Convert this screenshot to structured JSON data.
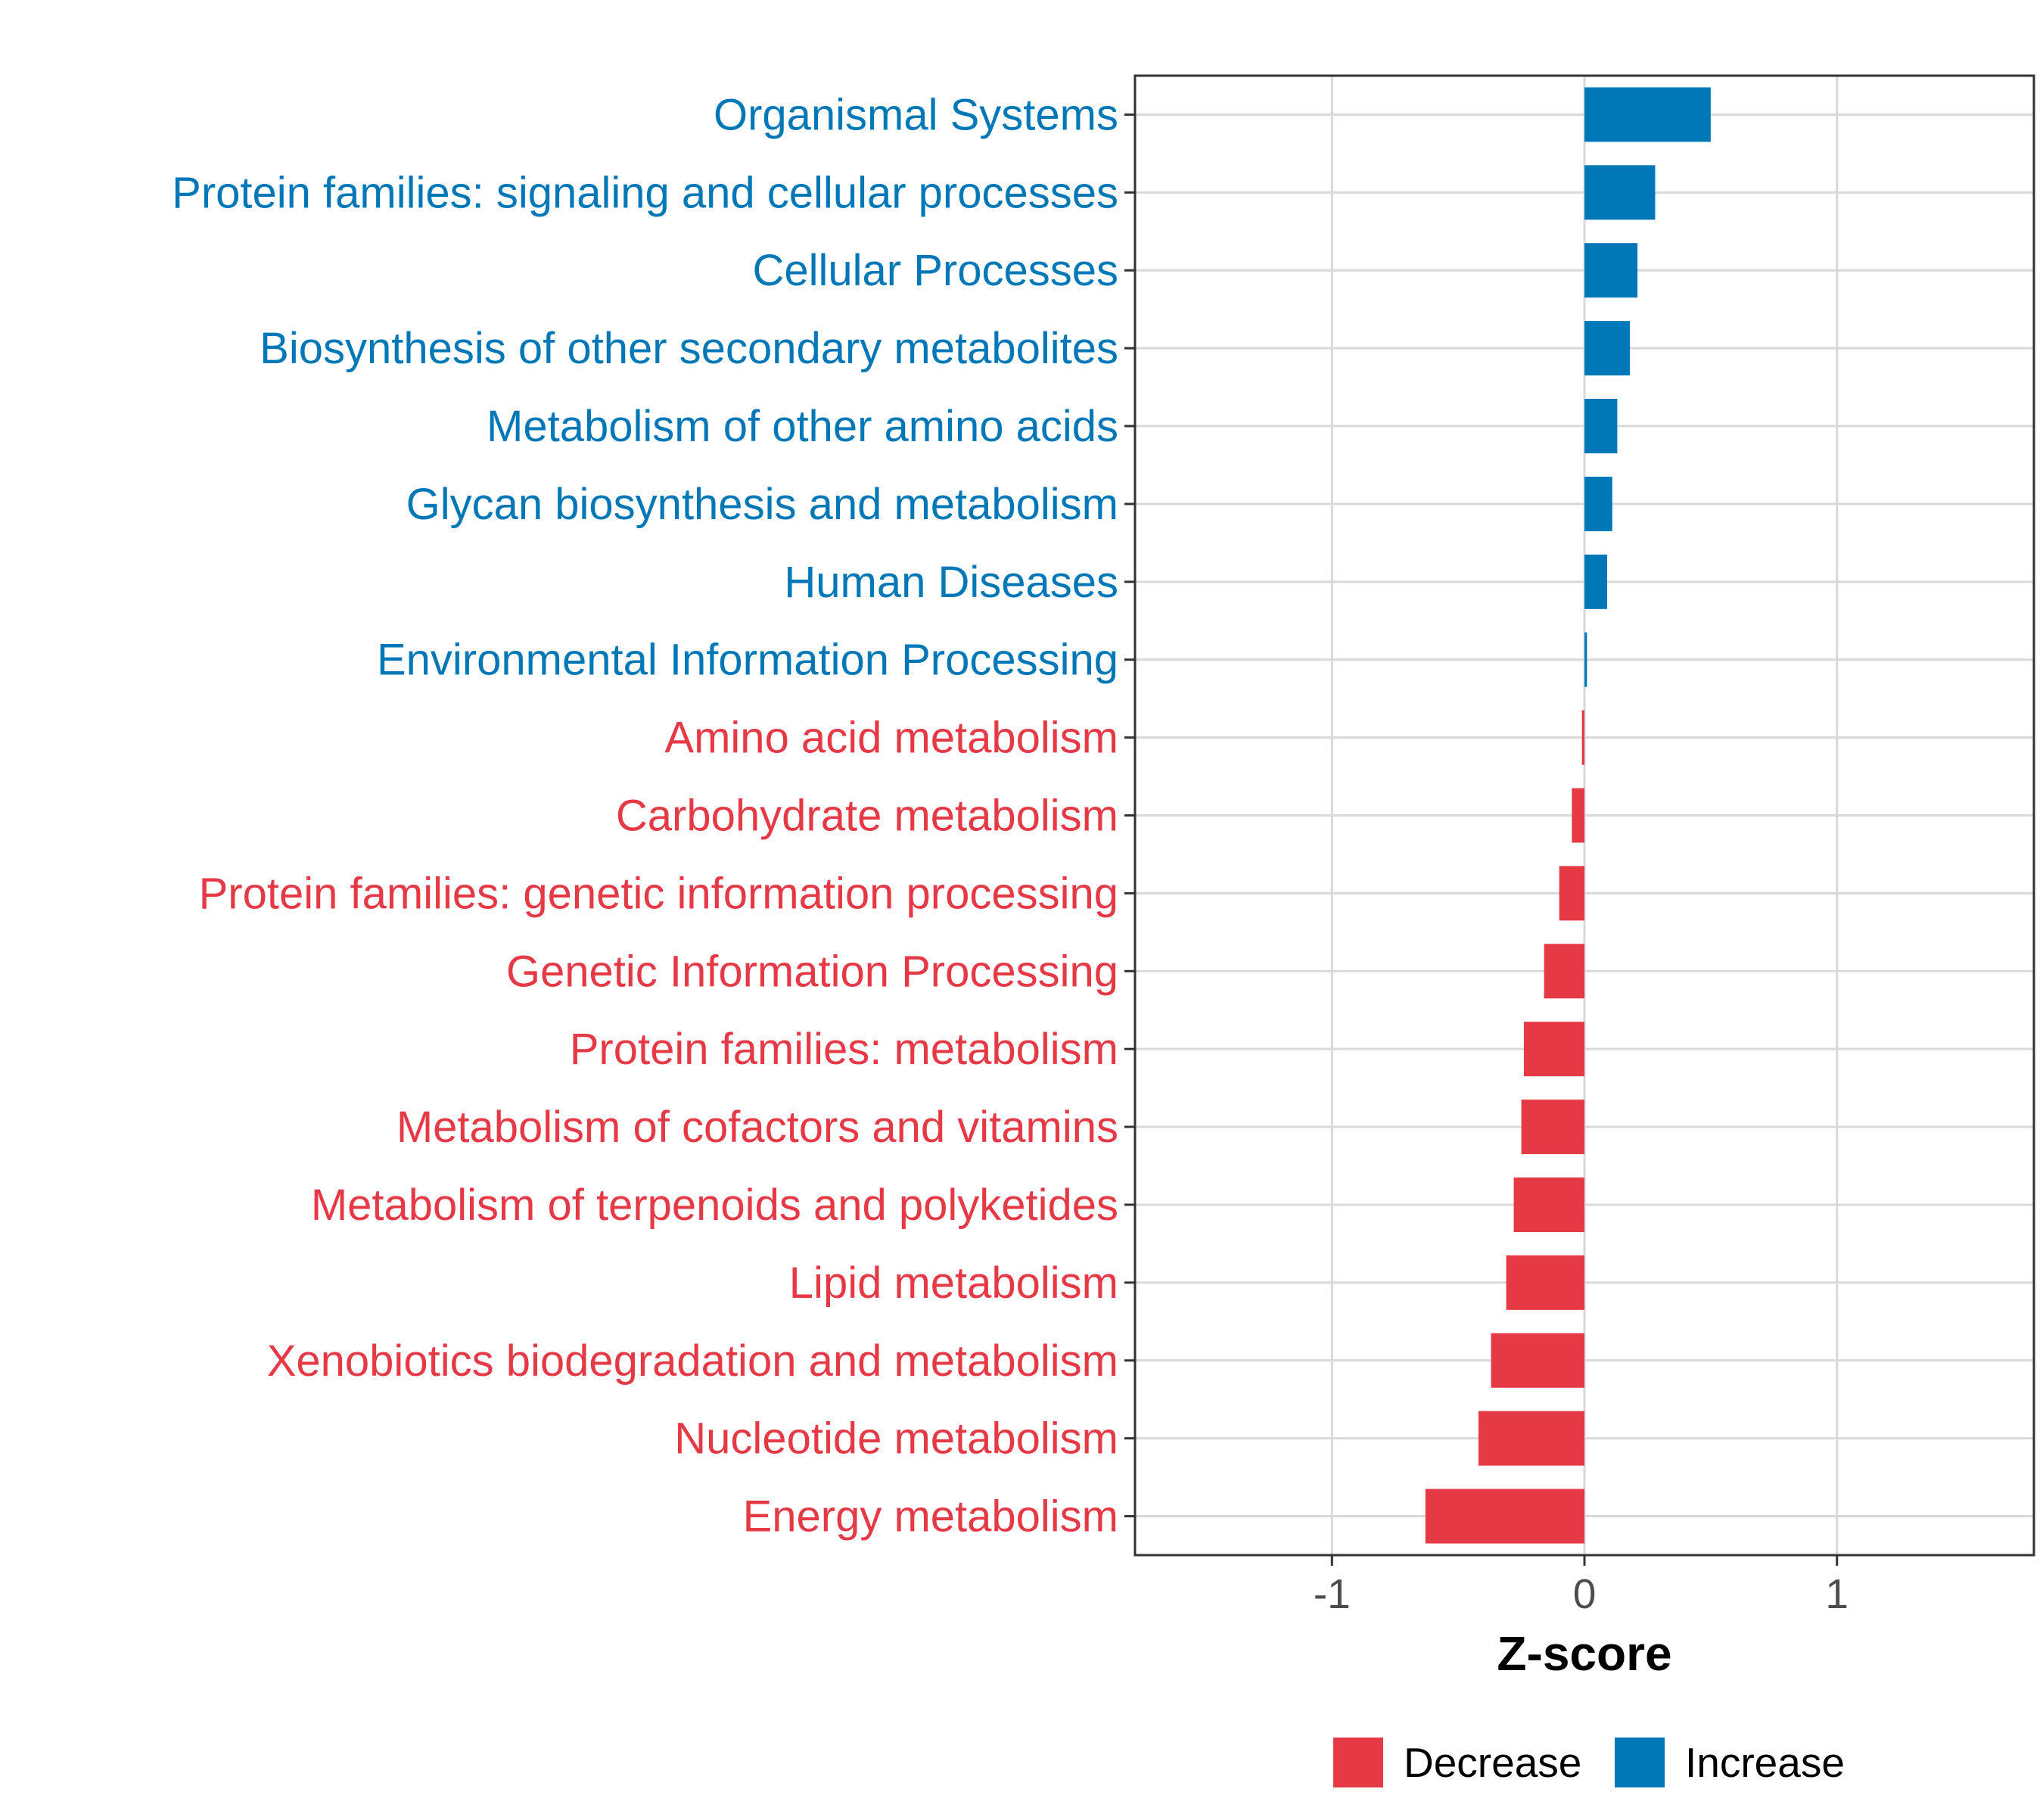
{
  "chart_data": {
    "type": "bar",
    "orientation": "horizontal",
    "xlabel": "Z-score",
    "ylabel": "",
    "xlim": [
      -1.78,
      1.78
    ],
    "xticks": [
      -1,
      0,
      1
    ],
    "xtick_labels": [
      "-1",
      "0",
      "1"
    ],
    "grid": true,
    "legend": {
      "placement": "bottom",
      "entries": [
        {
          "name": "Decrease",
          "color": "#E63946"
        },
        {
          "name": "Increase",
          "color": "#0077B6"
        }
      ]
    },
    "categories": [
      "Organismal Systems",
      "Protein families: signaling and cellular processes",
      "Cellular Processes",
      "Biosynthesis of other secondary metabolites",
      "Metabolism of other amino acids",
      "Glycan biosynthesis and metabolism",
      "Human Diseases",
      "Environmental Information Processing",
      "Amino acid metabolism",
      "Carbohydrate metabolism",
      "Protein families: genetic information processing",
      "Genetic Information Processing",
      "Protein families: metabolism",
      "Metabolism of cofactors and vitamins",
      "Metabolism of terpenoids and polyketides",
      "Lipid metabolism",
      "Xenobiotics biodegradation and metabolism",
      "Nucleotide metabolism",
      "Energy metabolism"
    ],
    "values": [
      0.5,
      0.28,
      0.21,
      0.18,
      0.13,
      0.11,
      0.09,
      0.01,
      -0.01,
      -0.05,
      -0.1,
      -0.16,
      -0.24,
      -0.25,
      -0.28,
      -0.31,
      -0.37,
      -0.42,
      -0.63
    ],
    "groups": [
      "Increase",
      "Increase",
      "Increase",
      "Increase",
      "Increase",
      "Increase",
      "Increase",
      "Increase",
      "Decrease",
      "Decrease",
      "Decrease",
      "Decrease",
      "Decrease",
      "Decrease",
      "Decrease",
      "Decrease",
      "Decrease",
      "Decrease",
      "Decrease"
    ]
  },
  "colors": {
    "Decrease": "#E63946",
    "Increase": "#0077B6",
    "grid": "#D9D9D9",
    "axis_text": "#4D4D4D",
    "panel_border": "#333333"
  }
}
